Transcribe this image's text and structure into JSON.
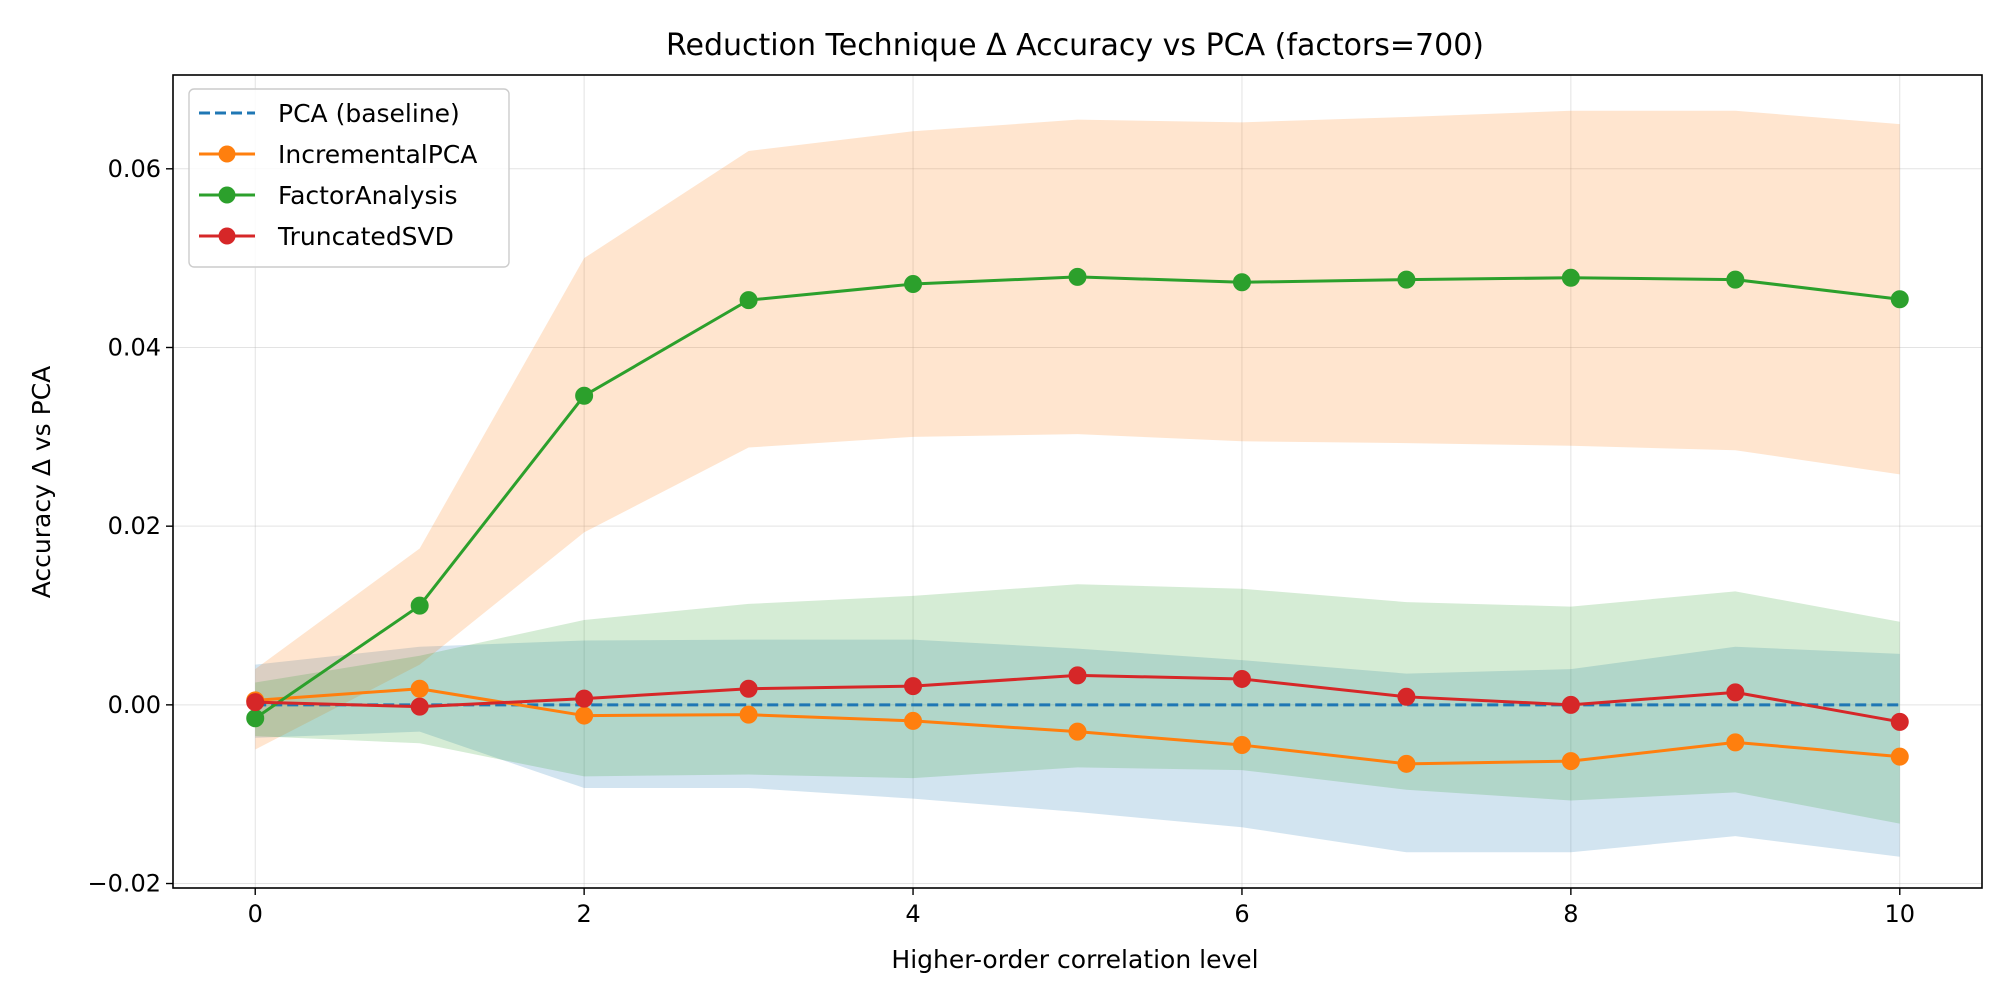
{
  "chart_data": {
    "type": "line",
    "title": "Reduction Technique Δ Accuracy vs PCA (factors=700)",
    "xlabel": "Higher-order correlation level",
    "ylabel": "Accuracy Δ vs PCA",
    "xlim": [
      -0.5,
      10.5
    ],
    "ylim": [
      -0.0205,
      0.0705
    ],
    "x_ticks": [
      0,
      2,
      4,
      6,
      8,
      10
    ],
    "x_tick_labels": [
      "0",
      "2",
      "4",
      "6",
      "8",
      "10"
    ],
    "y_ticks": [
      -0.02,
      0.0,
      0.02,
      0.04,
      0.06
    ],
    "y_tick_labels": [
      "−0.02",
      "0.00",
      "0.02",
      "0.04",
      "0.06"
    ],
    "grid": true,
    "legend_position": "top-left",
    "x": [
      0,
      1,
      2,
      3,
      4,
      5,
      6,
      7,
      8,
      9,
      10
    ],
    "bands": [
      {
        "color": "#1f77b4",
        "opacity": 0.2,
        "upper": [
          0.0045,
          0.0065,
          0.0072,
          0.0073,
          0.0073,
          0.0063,
          0.005,
          0.0035,
          0.004,
          0.0065,
          0.0057
        ],
        "lower": [
          -0.0037,
          -0.003,
          -0.0093,
          -0.0093,
          -0.0105,
          -0.012,
          -0.0137,
          -0.0165,
          -0.0165,
          -0.0147,
          -0.017
        ]
      },
      {
        "color": "#ff7f0e",
        "opacity": 0.2,
        "upper": [
          0.004,
          0.0175,
          0.05,
          0.062,
          0.0642,
          0.0655,
          0.0652,
          0.0658,
          0.0665,
          0.0665,
          0.065
        ],
        "lower": [
          -0.005,
          0.0045,
          0.0193,
          0.0288,
          0.03,
          0.0303,
          0.0295,
          0.0293,
          0.029,
          0.0285,
          0.0258
        ]
      },
      {
        "color": "#2ca02c",
        "opacity": 0.2,
        "upper": [
          0.0025,
          0.0055,
          0.0095,
          0.0113,
          0.0122,
          0.0135,
          0.013,
          0.0115,
          0.011,
          0.0127,
          0.0093
        ],
        "lower": [
          -0.0035,
          -0.0043,
          -0.008,
          -0.0078,
          -0.0082,
          -0.007,
          -0.0073,
          -0.0095,
          -0.0107,
          -0.0098,
          -0.0133
        ]
      }
    ],
    "series": [
      {
        "name": "PCA (baseline)",
        "color": "#1f77b4",
        "style": "dashed",
        "markers": false,
        "values": [
          0,
          0,
          0,
          0,
          0,
          0,
          0,
          0,
          0,
          0,
          0
        ]
      },
      {
        "name": "IncrementalPCA",
        "color": "#ff7f0e",
        "style": "solid",
        "markers": true,
        "values": [
          0.0005,
          0.0018,
          -0.0012,
          -0.0011,
          -0.0018,
          -0.003,
          -0.0045,
          -0.0066,
          -0.0063,
          -0.0042,
          -0.0058
        ]
      },
      {
        "name": "FactorAnalysis",
        "color": "#2ca02c",
        "style": "solid",
        "markers": true,
        "values": [
          -0.0015,
          0.0111,
          0.0346,
          0.0453,
          0.0471,
          0.0479,
          0.0473,
          0.0476,
          0.0478,
          0.0476,
          0.0454
        ]
      },
      {
        "name": "TruncatedSVD",
        "color": "#d62728",
        "style": "solid",
        "markers": true,
        "values": [
          0.0003,
          -0.0002,
          0.0007,
          0.0018,
          0.0021,
          0.0033,
          0.0029,
          0.0009,
          0.0,
          0.0014,
          -0.0019
        ]
      }
    ]
  }
}
